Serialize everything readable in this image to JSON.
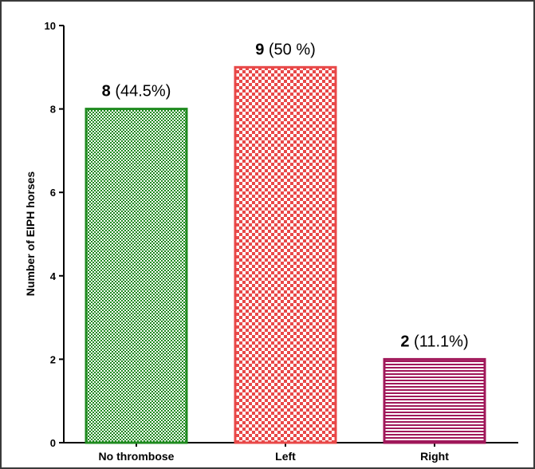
{
  "chart_data": {
    "type": "bar",
    "categories": [
      "No thrombose",
      "Left",
      "Right"
    ],
    "values": [
      8,
      9,
      2
    ],
    "annotations": [
      {
        "count": "8",
        "percent": " (44.5%)"
      },
      {
        "count": "9",
        "percent": " (50 %)"
      },
      {
        "count": "2",
        "percent": " (11.1%)"
      }
    ],
    "ylabel": "Number of EIPH horses",
    "xlabel": "",
    "ylim": [
      0,
      10
    ],
    "yticks": [
      0,
      2,
      4,
      6,
      8,
      10
    ],
    "grid": false,
    "colors": {
      "no_thrombose": "#1f8a1f",
      "left": "#e84848",
      "right": "#a0185a"
    }
  }
}
